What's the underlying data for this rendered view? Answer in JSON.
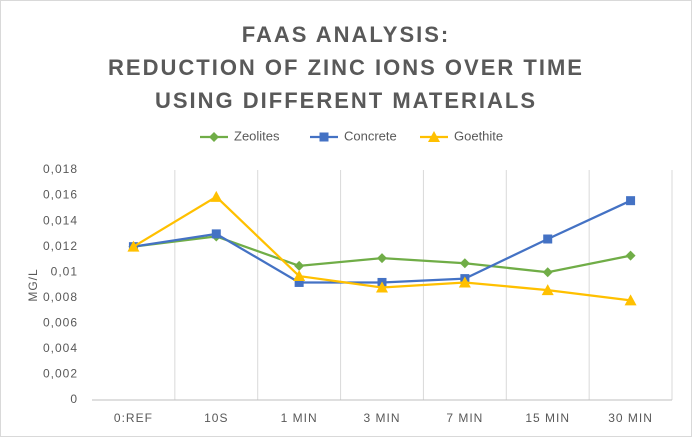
{
  "chart_data": {
    "type": "line",
    "title": [
      "FAAS ANALYSIS:",
      "REDUCTION OF ZINC IONS OVER TIME",
      "USING DIFFERENT MATERIALS"
    ],
    "y_label": "MG/L",
    "categories": [
      "0:REF",
      "10S",
      "1 MIN",
      "3 MIN",
      "7 MIN",
      "15 MIN",
      "30 MIN"
    ],
    "series": [
      {
        "name": "Zeolites",
        "color": "#70ad47",
        "marker": "diamond",
        "values": [
          0.012,
          0.0128,
          0.0105,
          0.0111,
          0.0107,
          0.01,
          0.0113
        ]
      },
      {
        "name": "Concrete",
        "color": "#4472c4",
        "marker": "square",
        "values": [
          0.012,
          0.013,
          0.0092,
          0.0092,
          0.0095,
          0.0126,
          0.0156
        ]
      },
      {
        "name": "Goethite",
        "color": "#ffc000",
        "marker": "triangle",
        "values": [
          0.012,
          0.0159,
          0.0097,
          0.0088,
          0.0092,
          0.0086,
          0.0078
        ]
      }
    ],
    "ylim": [
      0,
      0.018
    ],
    "yticks": [
      0,
      {
        "value": 0.002,
        "label": "0,002"
      },
      {
        "value": 0.004,
        "label": "0,004"
      },
      {
        "value": 0.006,
        "label": "0,006"
      },
      {
        "value": 0.008,
        "label": "0,008"
      },
      {
        "value": 0.01,
        "label": "0,01"
      },
      {
        "value": 0.012,
        "label": "0,012"
      },
      {
        "value": 0.014,
        "label": "0,014"
      },
      {
        "value": 0.016,
        "label": "0,016"
      },
      {
        "value": 0.018,
        "label": "0,018"
      }
    ],
    "legend": "top"
  }
}
